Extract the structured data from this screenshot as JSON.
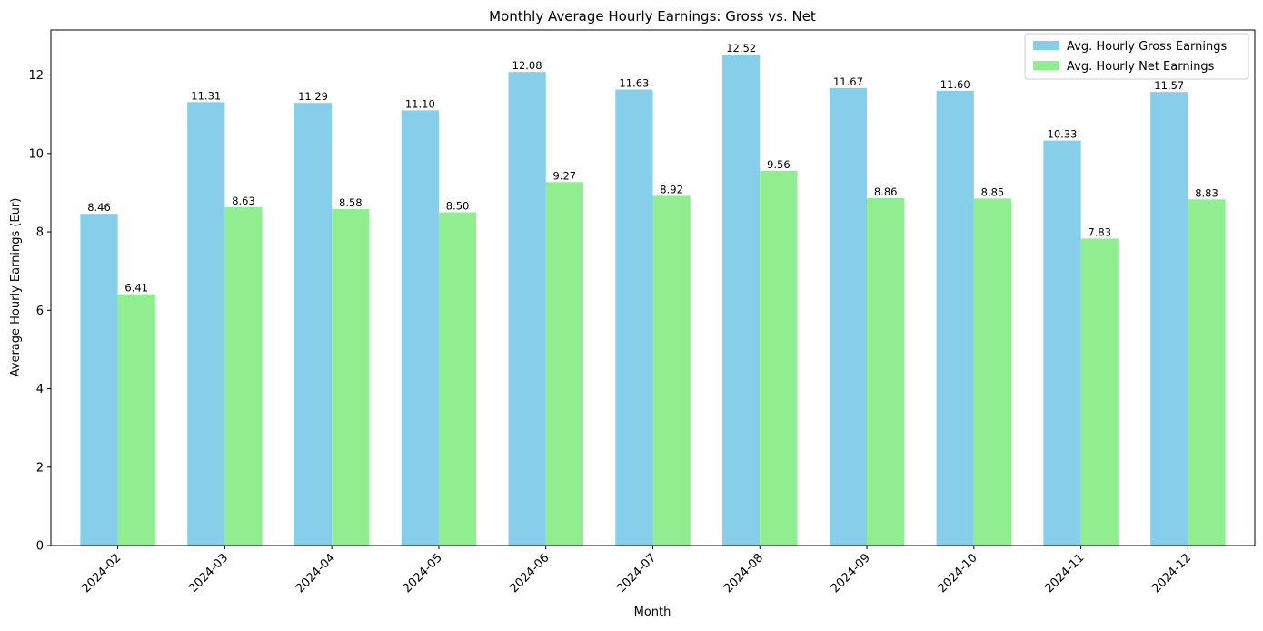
{
  "chart_data": {
    "type": "bar",
    "title": "Monthly Average Hourly Earnings: Gross vs. Net",
    "xlabel": "Month",
    "ylabel": "Average Hourly Earnings (Eur)",
    "categories": [
      "2024-02",
      "2024-03",
      "2024-04",
      "2024-05",
      "2024-06",
      "2024-07",
      "2024-08",
      "2024-09",
      "2024-10",
      "2024-11",
      "2024-12"
    ],
    "series": [
      {
        "name": "Avg. Hourly Gross Earnings",
        "color": "#87ceeb",
        "values": [
          8.46,
          11.31,
          11.29,
          11.1,
          12.08,
          11.63,
          12.52,
          11.67,
          11.6,
          10.33,
          11.57
        ],
        "labels": [
          "8.46",
          "11.31",
          "11.29",
          "11.10",
          "12.08",
          "11.63",
          "12.52",
          "11.67",
          "11.60",
          "10.33",
          "11.57"
        ]
      },
      {
        "name": "Avg. Hourly Net Earnings",
        "color": "#90ee90",
        "values": [
          6.41,
          8.63,
          8.58,
          8.5,
          9.27,
          8.92,
          9.56,
          8.86,
          8.85,
          7.83,
          8.83
        ],
        "labels": [
          "6.41",
          "8.63",
          "8.58",
          "8.50",
          "9.27",
          "8.92",
          "9.56",
          "8.86",
          "8.85",
          "7.83",
          "8.83"
        ]
      }
    ],
    "yticks": [
      "0",
      "2",
      "4",
      "6",
      "8",
      "10",
      "12"
    ],
    "ylim": [
      0,
      13.15
    ],
    "grid": false,
    "legend_position": "top-right"
  }
}
